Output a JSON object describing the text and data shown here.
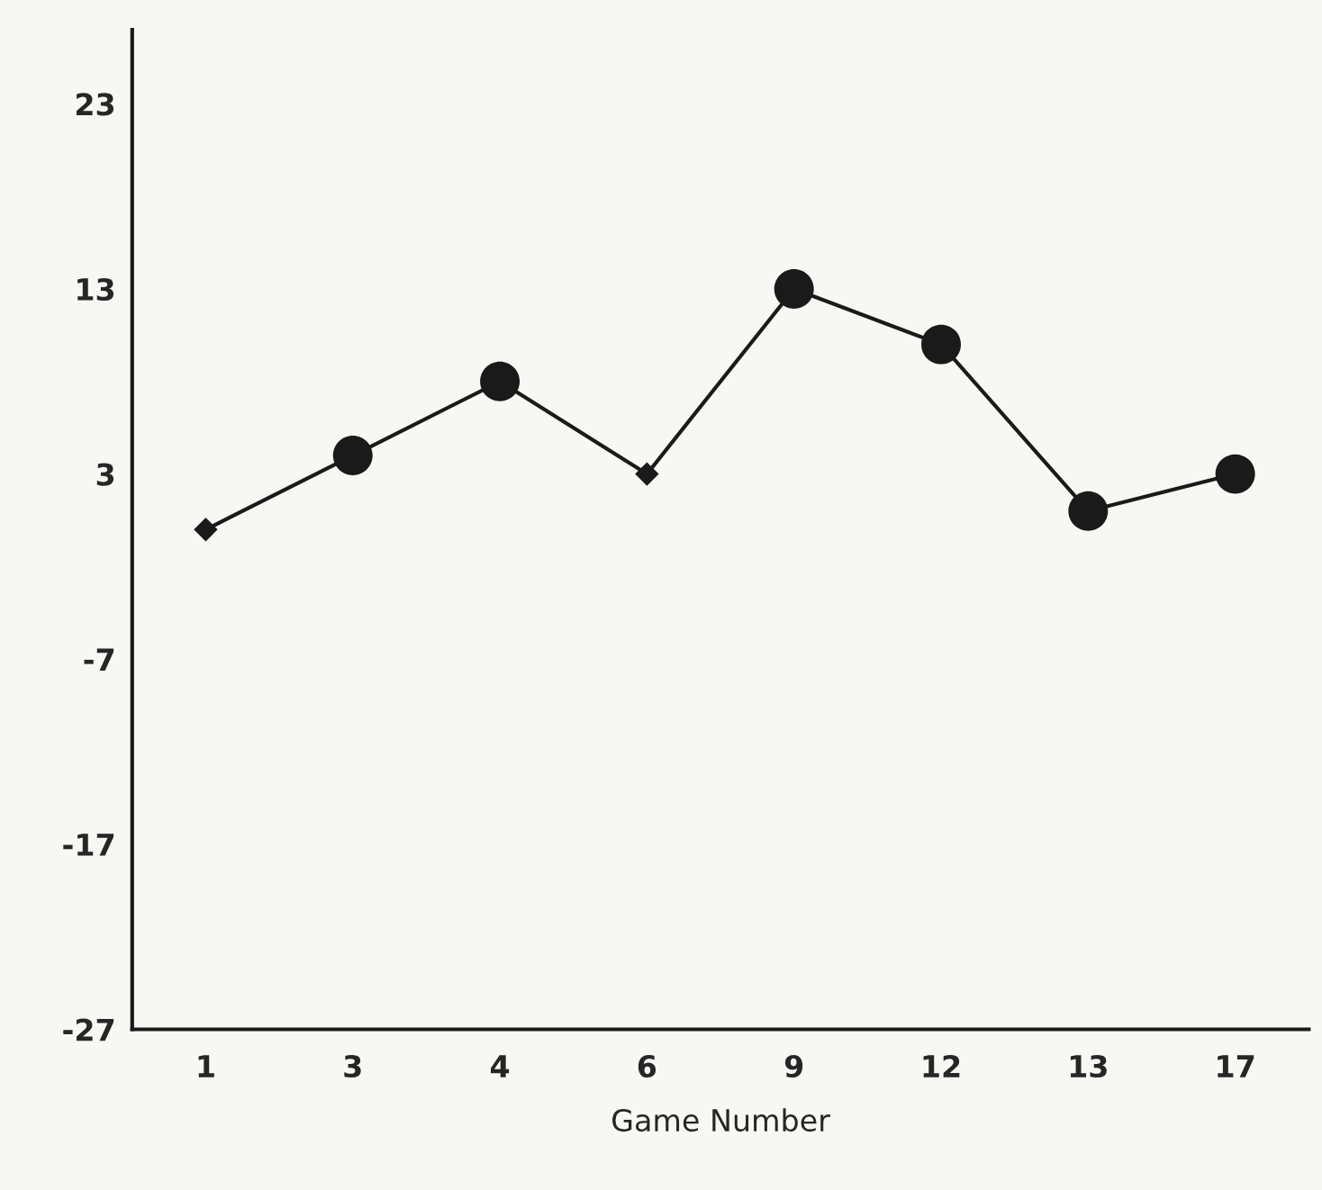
{
  "chart_data": {
    "type": "line",
    "xlabel": "Game Number",
    "categories": [
      "1",
      "3",
      "4",
      "6",
      "9",
      "12",
      "13",
      "17"
    ],
    "series": [
      {
        "color": "#1a1a1a",
        "marker": "none",
        "values": [
          0,
          4,
          8,
          3,
          13,
          10,
          1,
          3
        ]
      },
      {
        "type": "scatter",
        "color": "#1a1a1a",
        "marker": "circle",
        "x": [
          "3",
          "4",
          "9",
          "12",
          "13",
          "17"
        ],
        "values": [
          4,
          8,
          13,
          10,
          1,
          3
        ]
      },
      {
        "type": "scatter",
        "color": "#1a1a1a",
        "marker": "diamond",
        "x": [
          "1",
          "6"
        ],
        "values": [
          0,
          3
        ]
      }
    ],
    "ylim": [
      -27,
      27
    ],
    "yticks": [
      -27,
      -17,
      -7,
      3,
      13,
      23
    ],
    "grid": false,
    "legend": false
  }
}
